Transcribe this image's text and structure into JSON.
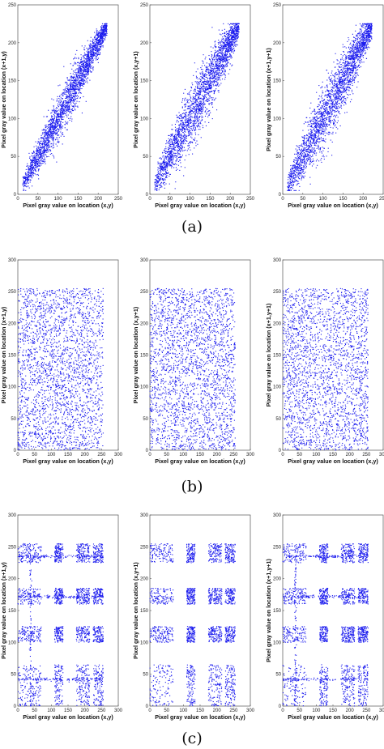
{
  "figure": {
    "captions": [
      "(a)",
      "(b)",
      "(c)"
    ]
  },
  "colors": {
    "points": "#1a1aee",
    "axes": "#555555"
  },
  "chart_data": [
    {
      "type": "scatter",
      "row": "a",
      "panel": 1,
      "xlabel": "Pixel gray value on location (x,y)",
      "ylabel": "Pixel gray value on location (x+1,y)",
      "xlim": [
        0,
        250
      ],
      "ylim": [
        0,
        250
      ],
      "xticks": [
        0,
        50,
        100,
        150,
        200,
        250
      ],
      "yticks": [
        0,
        50,
        100,
        150,
        200,
        250
      ],
      "pattern": "diagonal",
      "x_range": [
        12,
        222
      ],
      "n_points": 2600
    },
    {
      "type": "scatter",
      "row": "a",
      "panel": 2,
      "xlabel": "Pixel gray value on location (x,y)",
      "ylabel": "Pixel gray value on location (x,y+1)",
      "xlim": [
        0,
        250
      ],
      "ylim": [
        0,
        250
      ],
      "xticks": [
        0,
        50,
        100,
        150,
        200,
        250
      ],
      "yticks": [
        0,
        50,
        100,
        150,
        200,
        250
      ],
      "pattern": "diagonal",
      "x_range": [
        12,
        222
      ],
      "n_points": 2600
    },
    {
      "type": "scatter",
      "row": "a",
      "panel": 3,
      "xlabel": "Pixel gray value on location (x,y)",
      "ylabel": "Pixel gray value on location (x+1,y+1)",
      "xlim": [
        0,
        250
      ],
      "ylim": [
        0,
        250
      ],
      "xticks": [
        0,
        50,
        100,
        150,
        200,
        250
      ],
      "yticks": [
        0,
        50,
        100,
        150,
        200,
        250
      ],
      "pattern": "diagonal",
      "x_range": [
        12,
        222
      ],
      "n_points": 2600
    },
    {
      "type": "scatter",
      "row": "b",
      "panel": 1,
      "xlabel": "Pixel gray value on location (x,y)",
      "ylabel": "Pixel gray value on location (x+1,y)",
      "xlim": [
        0,
        300
      ],
      "ylim": [
        0,
        300
      ],
      "xticks": [
        0,
        50,
        100,
        150,
        200,
        250,
        300
      ],
      "yticks": [
        0,
        50,
        100,
        150,
        200,
        250,
        300
      ],
      "pattern": "uniform",
      "x_range": [
        0,
        255
      ],
      "y_range": [
        0,
        255
      ],
      "n_points": 2600
    },
    {
      "type": "scatter",
      "row": "b",
      "panel": 2,
      "xlabel": "Pixel gray value on location (x,y)",
      "ylabel": "Pixel gray value on location (x,y+1)",
      "xlim": [
        0,
        300
      ],
      "ylim": [
        0,
        300
      ],
      "xticks": [
        0,
        50,
        100,
        150,
        200,
        250,
        300
      ],
      "yticks": [
        0,
        50,
        100,
        150,
        200,
        250,
        300
      ],
      "pattern": "uniform",
      "x_range": [
        0,
        255
      ],
      "y_range": [
        0,
        255
      ],
      "n_points": 2600
    },
    {
      "type": "scatter",
      "row": "b",
      "panel": 3,
      "xlabel": "Pixel gray value on location (x,y)",
      "ylabel": "Pixel gray value on location (x+1,y+1)",
      "xlim": [
        0,
        300
      ],
      "ylim": [
        0,
        300
      ],
      "xticks": [
        0,
        50,
        100,
        150,
        200,
        250,
        300
      ],
      "yticks": [
        0,
        50,
        100,
        150,
        200,
        250,
        300
      ],
      "pattern": "uniform",
      "x_range": [
        0,
        255
      ],
      "y_range": [
        0,
        255
      ],
      "n_points": 2600
    },
    {
      "type": "scatter",
      "row": "c",
      "panel": 1,
      "xlabel": "Pixel gray value on location (x,y)",
      "ylabel": "Pixel gray value on location (x+1,y)",
      "xlim": [
        0,
        300
      ],
      "ylim": [
        0,
        300
      ],
      "xticks": [
        0,
        50,
        100,
        150,
        200,
        250,
        300
      ],
      "yticks": [
        0,
        50,
        100,
        150,
        200,
        250,
        300
      ],
      "pattern": "banded",
      "x_bands": [
        [
          0,
          70
        ],
        [
          110,
          135
        ],
        [
          175,
          215
        ],
        [
          225,
          255
        ]
      ],
      "y_bands": [
        [
          0,
          65
        ],
        [
          100,
          125
        ],
        [
          160,
          185
        ],
        [
          225,
          255
        ]
      ],
      "dense_rows": [
        42,
        172,
        235
      ],
      "dense_cols": [
        38
      ],
      "n_points": 2200
    },
    {
      "type": "scatter",
      "row": "c",
      "panel": 2,
      "xlabel": "Pixel gray value on location (x,y)",
      "ylabel": "Pixel gray value on location (x,y+1)",
      "xlim": [
        0,
        300
      ],
      "ylim": [
        0,
        300
      ],
      "xticks": [
        0,
        50,
        100,
        150,
        200,
        250,
        300
      ],
      "yticks": [
        0,
        50,
        100,
        150,
        200,
        250,
        300
      ],
      "pattern": "banded",
      "x_bands": [
        [
          0,
          70
        ],
        [
          110,
          135
        ],
        [
          175,
          215
        ],
        [
          225,
          255
        ]
      ],
      "y_bands": [
        [
          0,
          65
        ],
        [
          100,
          125
        ],
        [
          160,
          185
        ],
        [
          225,
          255
        ]
      ],
      "dense_rows": [],
      "dense_cols": [],
      "n_points": 2200
    },
    {
      "type": "scatter",
      "row": "c",
      "panel": 3,
      "xlabel": "Pixel gray value on location (x,y)",
      "ylabel": "Pixel gray value on location (x+1,y+1)",
      "xlim": [
        0,
        300
      ],
      "ylim": [
        0,
        300
      ],
      "xticks": [
        0,
        50,
        100,
        150,
        200,
        250,
        300
      ],
      "yticks": [
        0,
        50,
        100,
        150,
        200,
        250,
        300
      ],
      "pattern": "banded",
      "x_bands": [
        [
          0,
          70
        ],
        [
          110,
          135
        ],
        [
          175,
          215
        ],
        [
          225,
          255
        ]
      ],
      "y_bands": [
        [
          0,
          65
        ],
        [
          100,
          125
        ],
        [
          160,
          185
        ],
        [
          225,
          255
        ]
      ],
      "dense_rows": [
        42,
        172,
        235
      ],
      "dense_cols": [
        38
      ],
      "n_points": 2200
    }
  ]
}
